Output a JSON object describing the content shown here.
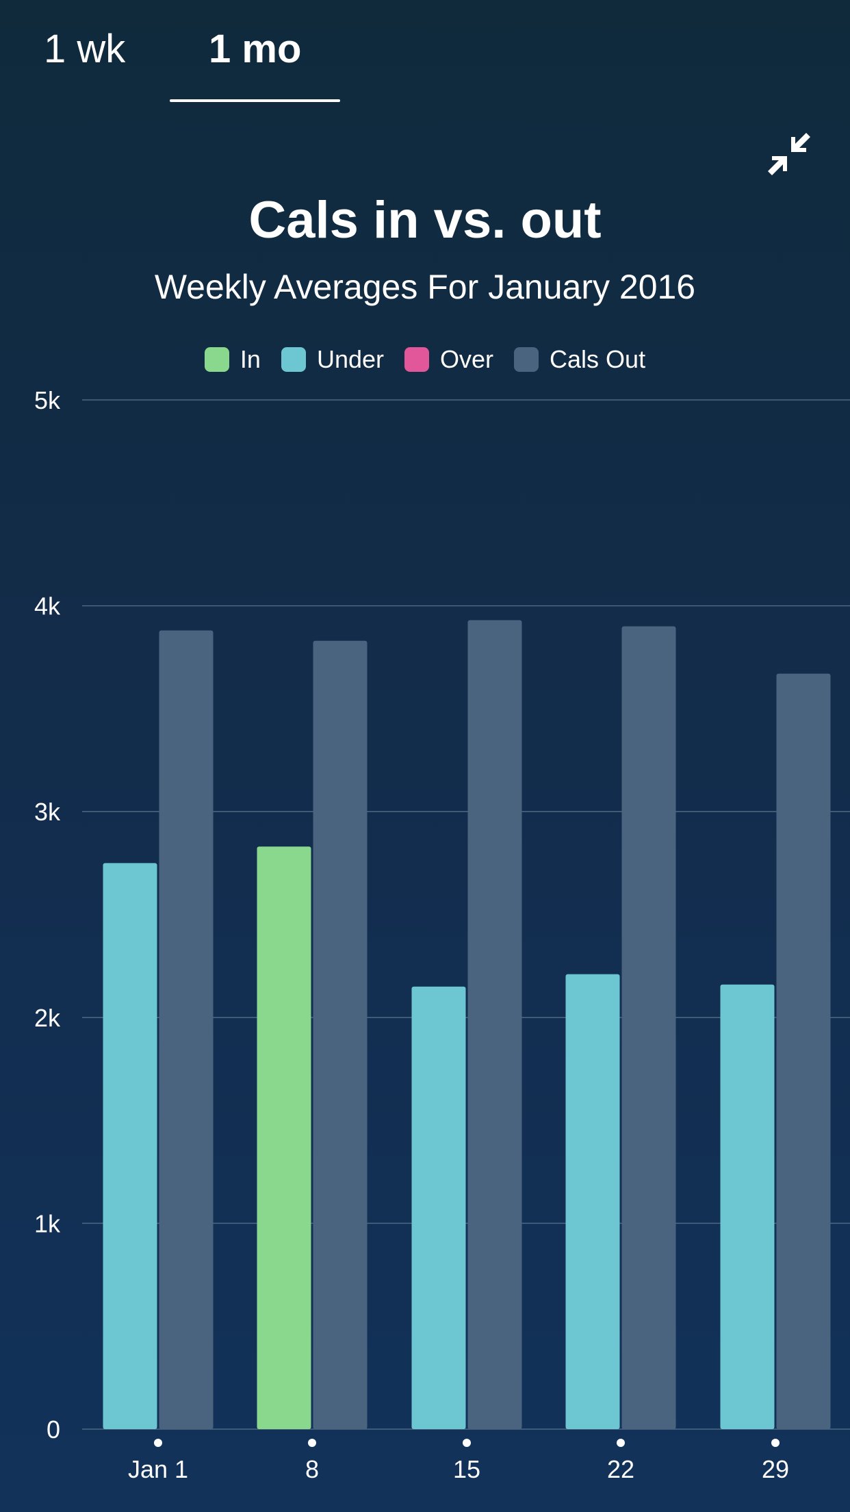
{
  "tabs": [
    {
      "label": "1 wk",
      "selected": false
    },
    {
      "label": "1 mo",
      "selected": true
    }
  ],
  "collapse_icon": "collapse-arrows-icon",
  "colors": {
    "in": "#89d88e",
    "under": "#6cc7d2",
    "over": "#e2569a",
    "cals_out": "#4a6480",
    "grid": "#4c6982",
    "text": "#ffffff"
  },
  "chart_data": {
    "type": "bar",
    "title": "Cals in vs. out",
    "subtitle": "Weekly Averages For January 2016",
    "legend": [
      {
        "key": "in",
        "label": "In"
      },
      {
        "key": "under",
        "label": "Under"
      },
      {
        "key": "over",
        "label": "Over"
      },
      {
        "key": "cals_out",
        "label": "Cals Out"
      }
    ],
    "categories": [
      "Jan 1",
      "8",
      "15",
      "22",
      "29"
    ],
    "series": [
      {
        "name": "Cals In",
        "values": [
          2750,
          2830,
          2150,
          2210,
          2160
        ],
        "status": [
          "under",
          "in",
          "under",
          "under",
          "under"
        ]
      },
      {
        "name": "Cals Out",
        "values": [
          3880,
          3830,
          3930,
          3900,
          3670
        ]
      }
    ],
    "yticks": [
      {
        "value": 0,
        "label": "0"
      },
      {
        "value": 1000,
        "label": "1k"
      },
      {
        "value": 2000,
        "label": "2k"
      },
      {
        "value": 3000,
        "label": "3k"
      },
      {
        "value": 4000,
        "label": "4k"
      },
      {
        "value": 5000,
        "label": "5k"
      }
    ],
    "ylim": [
      0,
      5000
    ],
    "xlabel": "",
    "ylabel": ""
  }
}
